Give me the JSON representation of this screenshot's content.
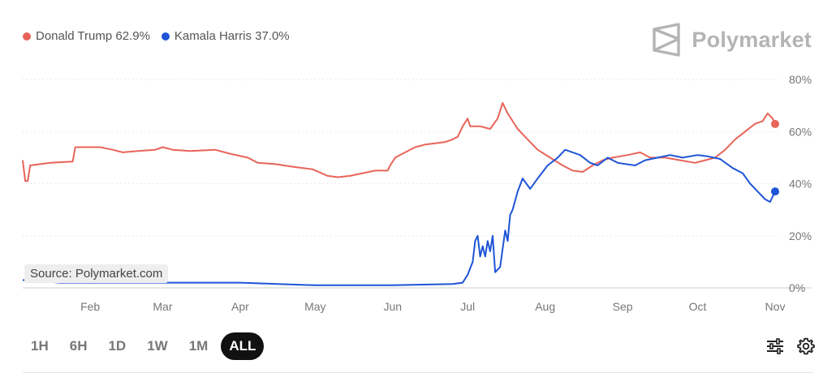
{
  "legend": [
    {
      "label": "Donald Trump 62.9%",
      "color": "#e8645a"
    },
    {
      "label": "Kamala Harris 37.0%",
      "color": "#1e54d6"
    }
  ],
  "brand": {
    "name": "Polymarket",
    "icon": "polymarket-logo-icon"
  },
  "source_label": "Source: Polymarket.com",
  "timeframes": [
    "1H",
    "6H",
    "1D",
    "1W",
    "1M",
    "ALL"
  ],
  "active_timeframe": "ALL",
  "tools": {
    "filter_icon": "sliders-icon",
    "settings_icon": "gear-icon"
  },
  "chart_data": {
    "type": "line",
    "x_ticks": [
      "Feb",
      "Mar",
      "Apr",
      "May",
      "Jun",
      "Jul",
      "Aug",
      "Sep",
      "Oct",
      "Nov"
    ],
    "y_ticks": [
      "80%",
      "60%",
      "40%",
      "20%",
      "0%"
    ],
    "ylim": [
      0,
      80
    ],
    "x_range": [
      "2024-01-05",
      "2024-11-01"
    ],
    "grid": "dotted-horizontal",
    "legend_position": "top-left",
    "series": [
      {
        "name": "Donald Trump",
        "color": "#e8645a",
        "points": [
          [
            "2024-01-05",
            49
          ],
          [
            "2024-01-06",
            41
          ],
          [
            "2024-01-07",
            41
          ],
          [
            "2024-01-08",
            47
          ],
          [
            "2024-01-12",
            47.5
          ],
          [
            "2024-01-16",
            48
          ],
          [
            "2024-01-25",
            48.5
          ],
          [
            "2024-01-26",
            54
          ],
          [
            "2024-02-05",
            54
          ],
          [
            "2024-02-10",
            53
          ],
          [
            "2024-02-14",
            52
          ],
          [
            "2024-02-20",
            52.5
          ],
          [
            "2024-02-27",
            53
          ],
          [
            "2024-03-01",
            54
          ],
          [
            "2024-03-05",
            53
          ],
          [
            "2024-03-12",
            52.5
          ],
          [
            "2024-03-22",
            53
          ],
          [
            "2024-03-28",
            51.5
          ],
          [
            "2024-04-04",
            50
          ],
          [
            "2024-04-08",
            48
          ],
          [
            "2024-04-15",
            47.5
          ],
          [
            "2024-04-22",
            46.5
          ],
          [
            "2024-04-30",
            45.5
          ],
          [
            "2024-05-06",
            43
          ],
          [
            "2024-05-10",
            42.5
          ],
          [
            "2024-05-15",
            43
          ],
          [
            "2024-05-20",
            44
          ],
          [
            "2024-05-25",
            45
          ],
          [
            "2024-05-30",
            45
          ],
          [
            "2024-05-31",
            47
          ],
          [
            "2024-06-02",
            50
          ],
          [
            "2024-06-06",
            52
          ],
          [
            "2024-06-10",
            54
          ],
          [
            "2024-06-14",
            55
          ],
          [
            "2024-06-18",
            55.5
          ],
          [
            "2024-06-22",
            56
          ],
          [
            "2024-06-25",
            57
          ],
          [
            "2024-06-27",
            58
          ],
          [
            "2024-06-29",
            62
          ],
          [
            "2024-07-01",
            65
          ],
          [
            "2024-07-02",
            62
          ],
          [
            "2024-07-06",
            62
          ],
          [
            "2024-07-10",
            61
          ],
          [
            "2024-07-13",
            65
          ],
          [
            "2024-07-15",
            71
          ],
          [
            "2024-07-17",
            67
          ],
          [
            "2024-07-19",
            64
          ],
          [
            "2024-07-21",
            61
          ],
          [
            "2024-07-25",
            57
          ],
          [
            "2024-07-29",
            53
          ],
          [
            "2024-08-03",
            50
          ],
          [
            "2024-08-08",
            47
          ],
          [
            "2024-08-12",
            45
          ],
          [
            "2024-08-16",
            44.5
          ],
          [
            "2024-08-20",
            47
          ],
          [
            "2024-08-24",
            49
          ],
          [
            "2024-08-28",
            50
          ],
          [
            "2024-09-03",
            51
          ],
          [
            "2024-09-08",
            52
          ],
          [
            "2024-09-12",
            50
          ],
          [
            "2024-09-18",
            50
          ],
          [
            "2024-09-24",
            49
          ],
          [
            "2024-09-30",
            48
          ],
          [
            "2024-10-04",
            49
          ],
          [
            "2024-10-08",
            50
          ],
          [
            "2024-10-12",
            53
          ],
          [
            "2024-10-16",
            57
          ],
          [
            "2024-10-20",
            60
          ],
          [
            "2024-10-24",
            63
          ],
          [
            "2024-10-27",
            64
          ],
          [
            "2024-10-29",
            67
          ],
          [
            "2024-10-31",
            65
          ],
          [
            "2024-11-01",
            62.9
          ]
        ]
      },
      {
        "name": "Kamala Harris",
        "color": "#1e54d6",
        "points": [
          [
            "2024-01-05",
            3
          ],
          [
            "2024-01-20",
            2
          ],
          [
            "2024-02-05",
            2
          ],
          [
            "2024-03-01",
            2
          ],
          [
            "2024-04-01",
            2
          ],
          [
            "2024-05-01",
            1
          ],
          [
            "2024-06-01",
            1
          ],
          [
            "2024-06-25",
            1.5
          ],
          [
            "2024-06-29",
            2
          ],
          [
            "2024-07-01",
            5
          ],
          [
            "2024-07-03",
            10
          ],
          [
            "2024-07-04",
            18
          ],
          [
            "2024-07-05",
            20
          ],
          [
            "2024-07-06",
            12
          ],
          [
            "2024-07-07",
            16
          ],
          [
            "2024-07-08",
            12
          ],
          [
            "2024-07-09",
            18
          ],
          [
            "2024-07-10",
            14
          ],
          [
            "2024-07-11",
            20
          ],
          [
            "2024-07-12",
            6
          ],
          [
            "2024-07-14",
            8
          ],
          [
            "2024-07-16",
            22
          ],
          [
            "2024-07-17",
            18
          ],
          [
            "2024-07-18",
            28
          ],
          [
            "2024-07-19",
            30
          ],
          [
            "2024-07-21",
            37
          ],
          [
            "2024-07-23",
            42
          ],
          [
            "2024-07-26",
            38
          ],
          [
            "2024-07-29",
            42
          ],
          [
            "2024-08-02",
            47
          ],
          [
            "2024-08-06",
            50
          ],
          [
            "2024-08-09",
            53
          ],
          [
            "2024-08-12",
            52
          ],
          [
            "2024-08-15",
            51
          ],
          [
            "2024-08-19",
            48
          ],
          [
            "2024-08-22",
            47
          ],
          [
            "2024-08-26",
            50
          ],
          [
            "2024-08-30",
            48
          ],
          [
            "2024-09-06",
            47
          ],
          [
            "2024-09-10",
            49
          ],
          [
            "2024-09-15",
            50
          ],
          [
            "2024-09-20",
            51
          ],
          [
            "2024-09-25",
            50
          ],
          [
            "2024-10-01",
            51
          ],
          [
            "2024-10-05",
            50.5
          ],
          [
            "2024-10-10",
            49.5
          ],
          [
            "2024-10-15",
            46
          ],
          [
            "2024-10-19",
            44
          ],
          [
            "2024-10-22",
            40
          ],
          [
            "2024-10-24",
            38
          ],
          [
            "2024-10-26",
            36
          ],
          [
            "2024-10-28",
            34
          ],
          [
            "2024-10-30",
            33
          ],
          [
            "2024-11-01",
            37.0
          ]
        ]
      }
    ]
  }
}
